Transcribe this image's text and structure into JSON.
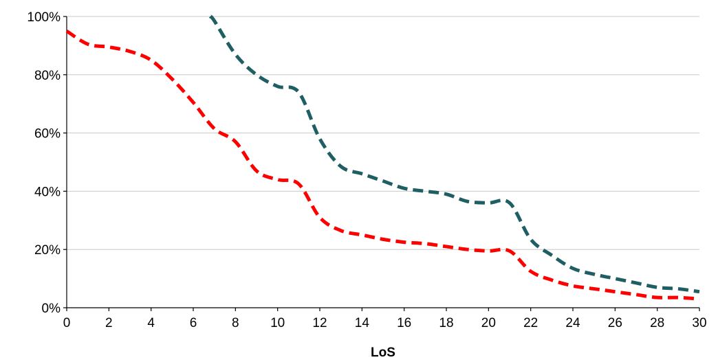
{
  "chart_data": {
    "type": "line",
    "title": "",
    "xlabel": "LoS",
    "ylabel": "",
    "xlim": [
      0,
      30
    ],
    "ylim": [
      0,
      100
    ],
    "x_ticks": [
      0,
      2,
      4,
      6,
      8,
      10,
      12,
      14,
      16,
      18,
      20,
      22,
      24,
      26,
      28,
      30
    ],
    "x_tick_labels": [
      "0",
      "2",
      "4",
      "6",
      "8",
      "10",
      "12",
      "14",
      "16",
      "18",
      "20",
      "22",
      "24",
      "26",
      "28",
      "30"
    ],
    "y_ticks": [
      0,
      20,
      40,
      60,
      80,
      100
    ],
    "y_tick_labels": [
      "0%",
      "20%",
      "40%",
      "60%",
      "80%",
      "100%"
    ],
    "grid": true,
    "legend": "none",
    "series": [
      {
        "color": "#ff0000",
        "style": "dashed",
        "points": [
          [
            0,
            95
          ],
          [
            1,
            90.5
          ],
          [
            2,
            89.5
          ],
          [
            3,
            88
          ],
          [
            4,
            85
          ],
          [
            5,
            78.5
          ],
          [
            6,
            70.5
          ],
          [
            7,
            61.5
          ],
          [
            8,
            57
          ],
          [
            9,
            47
          ],
          [
            10,
            44
          ],
          [
            11,
            42.5
          ],
          [
            12,
            31
          ],
          [
            13,
            26.5
          ],
          [
            14,
            25
          ],
          [
            15,
            23.5
          ],
          [
            16,
            22.5
          ],
          [
            17,
            22
          ],
          [
            18,
            21
          ],
          [
            19,
            20
          ],
          [
            20,
            19.5
          ],
          [
            21,
            19.5
          ],
          [
            22,
            12.5
          ],
          [
            23,
            9.5
          ],
          [
            24,
            7.5
          ],
          [
            25,
            6.5
          ],
          [
            26,
            5.5
          ],
          [
            27,
            4.5
          ],
          [
            28,
            3.5
          ],
          [
            29,
            3.5
          ],
          [
            30,
            3
          ]
        ]
      },
      {
        "color": "#1f5f63",
        "style": "dashed",
        "points": [
          [
            6.8,
            100
          ],
          [
            7,
            98.5
          ],
          [
            8,
            87
          ],
          [
            9,
            80
          ],
          [
            10,
            76
          ],
          [
            11,
            74
          ],
          [
            12,
            58
          ],
          [
            13,
            48.5
          ],
          [
            14,
            46
          ],
          [
            15,
            43.5
          ],
          [
            16,
            41
          ],
          [
            17,
            40
          ],
          [
            18,
            39
          ],
          [
            19,
            36.5
          ],
          [
            20,
            36
          ],
          [
            21,
            36
          ],
          [
            22,
            23.5
          ],
          [
            23,
            18
          ],
          [
            24,
            13.5
          ],
          [
            25,
            11.5
          ],
          [
            26,
            10
          ],
          [
            27,
            8.5
          ],
          [
            28,
            7
          ],
          [
            29,
            6.5
          ],
          [
            30,
            5.5
          ]
        ]
      }
    ]
  }
}
